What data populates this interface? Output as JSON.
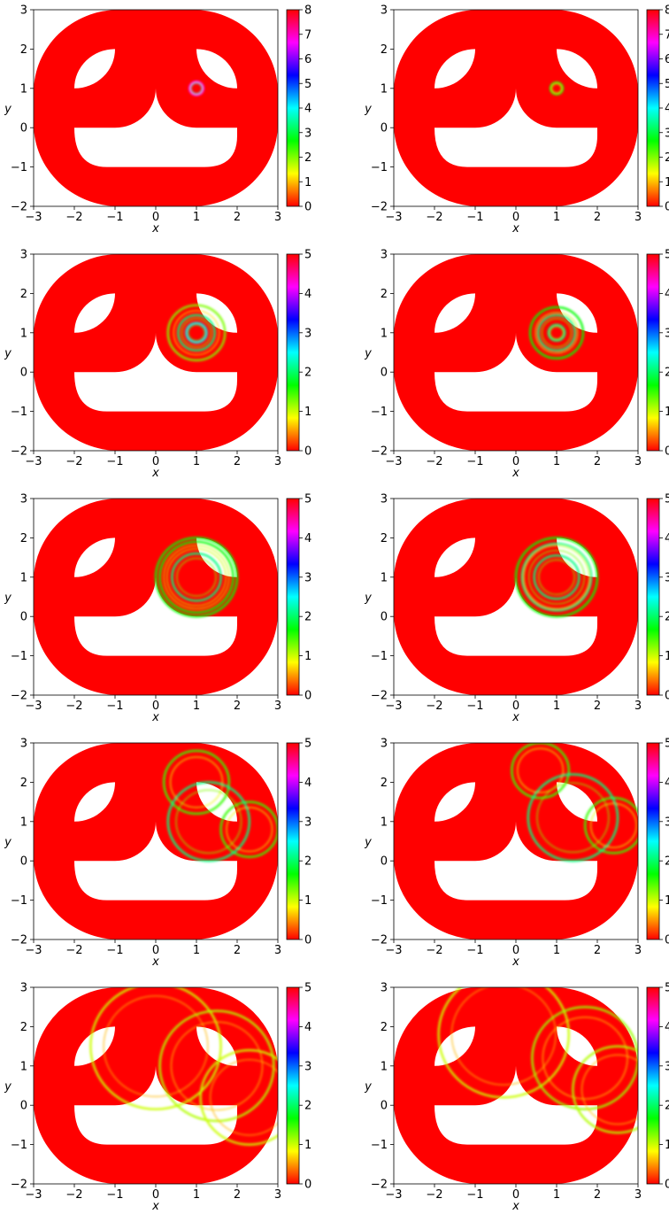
{
  "chart_data": [
    {
      "type": "heatmap",
      "xlabel": "x",
      "ylabel": "y",
      "xlim": [
        -3,
        3
      ],
      "ylim": [
        -2,
        3
      ],
      "xticks": [
        "−3",
        "−2",
        "−1",
        "0",
        "1",
        "2",
        "3"
      ],
      "yticks": [
        "−2",
        "−1",
        "0",
        "1",
        "2",
        "3"
      ],
      "colorbar": {
        "min": 0,
        "max": 8,
        "ticks": [
          "0",
          "1",
          "2",
          "3",
          "4",
          "5",
          "6",
          "7",
          "8"
        ]
      },
      "features": [
        {
          "kind": "ring",
          "cx": 1,
          "cy": 1,
          "r": 0.17,
          "amp": 8
        }
      ]
    },
    {
      "type": "heatmap",
      "xlabel": "x",
      "ylabel": "y",
      "xlim": [
        -3,
        3
      ],
      "ylim": [
        -2,
        3
      ],
      "xticks": [
        "−3",
        "−2",
        "−1",
        "0",
        "1",
        "2",
        "3"
      ],
      "yticks": [
        "−2",
        "−1",
        "0",
        "1",
        "2",
        "3"
      ],
      "colorbar": {
        "min": 0,
        "max": 8,
        "ticks": [
          "0",
          "1",
          "2",
          "3",
          "4",
          "5",
          "6",
          "7",
          "8"
        ]
      },
      "features": [
        {
          "kind": "ring",
          "cx": 1,
          "cy": 1,
          "r": 0.15,
          "amp": 3
        }
      ]
    },
    {
      "type": "heatmap",
      "xlabel": "x",
      "ylabel": "y",
      "xlim": [
        -3,
        3
      ],
      "ylim": [
        -2,
        3
      ],
      "xticks": [
        "−3",
        "−2",
        "−1",
        "0",
        "1",
        "2",
        "3"
      ],
      "yticks": [
        "−2",
        "−1",
        "0",
        "1",
        "2",
        "3"
      ],
      "colorbar": {
        "min": 0,
        "max": 5,
        "ticks": [
          "0",
          "1",
          "2",
          "3",
          "4",
          "5"
        ]
      },
      "features": [
        {
          "kind": "ring",
          "cx": 1,
          "cy": 1,
          "r": 0.25,
          "amp": 3
        },
        {
          "kind": "ring",
          "cx": 1,
          "cy": 1,
          "r": 0.45,
          "amp": 2.5
        },
        {
          "kind": "ring",
          "cx": 1,
          "cy": 1,
          "r": 0.7,
          "amp": 1.5
        }
      ]
    },
    {
      "type": "heatmap",
      "xlabel": "x",
      "ylabel": "y",
      "xlim": [
        -3,
        3
      ],
      "ylim": [
        -2,
        3
      ],
      "xticks": [
        "−3",
        "−2",
        "−1",
        "0",
        "1",
        "2",
        "3"
      ],
      "yticks": [
        "−2",
        "−1",
        "0",
        "1",
        "2",
        "3"
      ],
      "colorbar": {
        "min": 0,
        "max": 5,
        "ticks": [
          "0",
          "1",
          "2",
          "3",
          "4",
          "5"
        ]
      },
      "features": [
        {
          "kind": "ring",
          "cx": 1,
          "cy": 1,
          "r": 0.2,
          "amp": 2.5
        },
        {
          "kind": "ring",
          "cx": 1,
          "cy": 1,
          "r": 0.45,
          "amp": 2.5
        },
        {
          "kind": "ring",
          "cx": 1,
          "cy": 1,
          "r": 0.65,
          "amp": 2
        }
      ]
    },
    {
      "type": "heatmap",
      "xlabel": "x",
      "ylabel": "y",
      "xlim": [
        -3,
        3
      ],
      "ylim": [
        -2,
        3
      ],
      "xticks": [
        "−3",
        "−2",
        "−1",
        "0",
        "1",
        "2",
        "3"
      ],
      "yticks": [
        "−2",
        "−1",
        "0",
        "1",
        "2",
        "3"
      ],
      "colorbar": {
        "min": 0,
        "max": 5,
        "ticks": [
          "0",
          "1",
          "2",
          "3",
          "4",
          "5"
        ]
      },
      "features": [
        {
          "kind": "ring",
          "cx": 1,
          "cy": 1,
          "r": 0.6,
          "amp": 2.5
        },
        {
          "kind": "ring",
          "cx": 1,
          "cy": 1,
          "r": 0.9,
          "amp": 2
        },
        {
          "kind": "ring",
          "cx": 1,
          "cy": 1,
          "r": 1.0,
          "amp": 2
        }
      ]
    },
    {
      "type": "heatmap",
      "xlabel": "x",
      "ylabel": "y",
      "xlim": [
        -3,
        3
      ],
      "ylim": [
        -2,
        3
      ],
      "xticks": [
        "−3",
        "−2",
        "−1",
        "0",
        "1",
        "2",
        "3"
      ],
      "yticks": [
        "−2",
        "−1",
        "0",
        "1",
        "2",
        "3"
      ],
      "colorbar": {
        "min": 0,
        "max": 5,
        "ticks": [
          "0",
          "1",
          "2",
          "3",
          "4",
          "5"
        ]
      },
      "features": [
        {
          "kind": "ring",
          "cx": 1,
          "cy": 1,
          "r": 0.55,
          "amp": 2.5
        },
        {
          "kind": "ring",
          "cx": 1,
          "cy": 1,
          "r": 0.85,
          "amp": 2.5
        },
        {
          "kind": "ring",
          "cx": 1,
          "cy": 1,
          "r": 1.0,
          "amp": 2
        }
      ]
    },
    {
      "type": "heatmap",
      "xlabel": "x",
      "ylabel": "y",
      "xlim": [
        -3,
        3
      ],
      "ylim": [
        -2,
        3
      ],
      "xticks": [
        "−3",
        "−2",
        "−1",
        "0",
        "1",
        "2",
        "3"
      ],
      "yticks": [
        "−2",
        "−1",
        "0",
        "1",
        "2",
        "3"
      ],
      "colorbar": {
        "min": 0,
        "max": 5,
        "ticks": [
          "0",
          "1",
          "2",
          "3",
          "4",
          "5"
        ]
      },
      "features": [
        {
          "kind": "ring",
          "cx": 1,
          "cy": 2,
          "r": 0.8,
          "amp": 1.8
        },
        {
          "kind": "ring",
          "cx": 2.3,
          "cy": 0.8,
          "r": 0.7,
          "amp": 1.8
        },
        {
          "kind": "ring",
          "cx": 1.3,
          "cy": 1,
          "r": 1.0,
          "amp": 2.5
        }
      ]
    },
    {
      "type": "heatmap",
      "xlabel": "x",
      "ylabel": "y",
      "xlim": [
        -3,
        3
      ],
      "ylim": [
        -2,
        3
      ],
      "xticks": [
        "−3",
        "−2",
        "−1",
        "0",
        "1",
        "2",
        "3"
      ],
      "yticks": [
        "−2",
        "−1",
        "0",
        "1",
        "2",
        "3"
      ],
      "colorbar": {
        "min": 0,
        "max": 5,
        "ticks": [
          "0",
          "1",
          "2",
          "3",
          "4",
          "5"
        ]
      },
      "features": [
        {
          "kind": "ring",
          "cx": 0.6,
          "cy": 2.3,
          "r": 0.7,
          "amp": 1.8
        },
        {
          "kind": "ring",
          "cx": 2.4,
          "cy": 0.9,
          "r": 0.7,
          "amp": 1.8
        },
        {
          "kind": "ring",
          "cx": 1.4,
          "cy": 1.1,
          "r": 1.1,
          "amp": 2.5
        }
      ]
    },
    {
      "type": "heatmap",
      "xlabel": "x",
      "ylabel": "y",
      "xlim": [
        -3,
        3
      ],
      "ylim": [
        -2,
        3
      ],
      "xticks": [
        "−3",
        "−2",
        "−1",
        "0",
        "1",
        "2",
        "3"
      ],
      "yticks": [
        "−2",
        "−1",
        "0",
        "1",
        "2",
        "3"
      ],
      "colorbar": {
        "min": 0,
        "max": 5,
        "ticks": [
          "0",
          "1",
          "2",
          "3",
          "4",
          "5"
        ]
      },
      "features": [
        {
          "kind": "ring",
          "cx": 0,
          "cy": 1.5,
          "r": 1.6,
          "amp": 1.2
        },
        {
          "kind": "ring",
          "cx": 1.5,
          "cy": 1,
          "r": 1.4,
          "amp": 1.3
        },
        {
          "kind": "ring",
          "cx": 2.3,
          "cy": 0.2,
          "r": 1.2,
          "amp": 1.2
        }
      ]
    },
    {
      "type": "heatmap",
      "xlabel": "x",
      "ylabel": "y",
      "xlim": [
        -3,
        3
      ],
      "ylim": [
        -2,
        3
      ],
      "xticks": [
        "−3",
        "−2",
        "−1",
        "0",
        "1",
        "2",
        "3"
      ],
      "yticks": [
        "−2",
        "−1",
        "0",
        "1",
        "2",
        "3"
      ],
      "colorbar": {
        "min": 0,
        "max": 5,
        "ticks": [
          "0",
          "1",
          "2",
          "3",
          "4",
          "5"
        ]
      },
      "features": [
        {
          "kind": "ring",
          "cx": -0.3,
          "cy": 1.8,
          "r": 1.6,
          "amp": 1.2
        },
        {
          "kind": "ring",
          "cx": 1.7,
          "cy": 1.2,
          "r": 1.3,
          "amp": 1.4
        },
        {
          "kind": "ring",
          "cx": 2.5,
          "cy": 0.4,
          "r": 1.1,
          "amp": 1.3
        }
      ]
    }
  ]
}
